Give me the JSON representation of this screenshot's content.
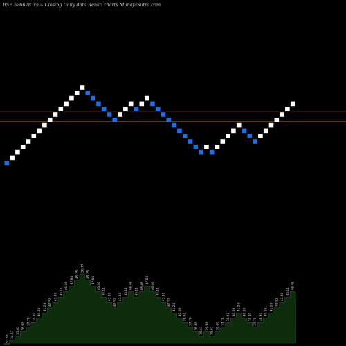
{
  "chart_title": "BSE 526628  3%~   Closing Daily data  Renko  charts MunafaSutra.com",
  "colors": {
    "background": "#000000",
    "up_brick": "#ffffff",
    "down_brick": "#1e6fe6",
    "reference_line": "#b5731c",
    "volume_fill": "#0c2c0c",
    "volume_stroke": "#3a5a3a"
  },
  "chart_data": [
    {
      "type": "renko",
      "title": "BSE 526628  3%~   Closing Daily data  Renko  charts MunafaSutra.com",
      "brick_size": "3%",
      "reference_lines": [
        44.6,
        42.1
      ],
      "bricks": [
        {
          "close": 33.56,
          "dir": "down"
        },
        {
          "close": 34.57,
          "dir": "up"
        },
        {
          "close": 35.61,
          "dir": "up"
        },
        {
          "close": 36.68,
          "dir": "up"
        },
        {
          "close": 37.78,
          "dir": "up"
        },
        {
          "close": 38.91,
          "dir": "up"
        },
        {
          "close": 40.08,
          "dir": "up"
        },
        {
          "close": 41.28,
          "dir": "up"
        },
        {
          "close": 42.52,
          "dir": "up"
        },
        {
          "close": 43.8,
          "dir": "up"
        },
        {
          "close": 45.11,
          "dir": "up"
        },
        {
          "close": 46.46,
          "dir": "up"
        },
        {
          "close": 47.86,
          "dir": "up"
        },
        {
          "close": 49.29,
          "dir": "up"
        },
        {
          "close": 50.77,
          "dir": "up"
        },
        {
          "close": 49.29,
          "dir": "down"
        },
        {
          "close": 47.86,
          "dir": "down"
        },
        {
          "close": 46.46,
          "dir": "down"
        },
        {
          "close": 45.11,
          "dir": "down"
        },
        {
          "close": 43.8,
          "dir": "down"
        },
        {
          "close": 42.52,
          "dir": "down"
        },
        {
          "close": 43.8,
          "dir": "up"
        },
        {
          "close": 45.11,
          "dir": "up"
        },
        {
          "close": 46.46,
          "dir": "up"
        },
        {
          "close": 45.11,
          "dir": "down"
        },
        {
          "close": 46.46,
          "dir": "up"
        },
        {
          "close": 47.86,
          "dir": "up"
        },
        {
          "close": 46.46,
          "dir": "down"
        },
        {
          "close": 45.11,
          "dir": "down"
        },
        {
          "close": 43.8,
          "dir": "down"
        },
        {
          "close": 42.52,
          "dir": "down"
        },
        {
          "close": 41.28,
          "dir": "down"
        },
        {
          "close": 40.08,
          "dir": "down"
        },
        {
          "close": 38.91,
          "dir": "down"
        },
        {
          "close": 37.78,
          "dir": "down"
        },
        {
          "close": 36.68,
          "dir": "down"
        },
        {
          "close": 35.61,
          "dir": "down"
        },
        {
          "close": 36.68,
          "dir": "up"
        },
        {
          "close": 35.61,
          "dir": "down"
        },
        {
          "close": 36.68,
          "dir": "up"
        },
        {
          "close": 37.78,
          "dir": "up"
        },
        {
          "close": 38.91,
          "dir": "up"
        },
        {
          "close": 40.08,
          "dir": "up"
        },
        {
          "close": 41.28,
          "dir": "up"
        },
        {
          "close": 40.08,
          "dir": "down"
        },
        {
          "close": 38.91,
          "dir": "down"
        },
        {
          "close": 37.78,
          "dir": "down"
        },
        {
          "close": 38.91,
          "dir": "up"
        },
        {
          "close": 40.08,
          "dir": "up"
        },
        {
          "close": 41.28,
          "dir": "up"
        },
        {
          "close": 42.52,
          "dir": "up"
        },
        {
          "close": 43.8,
          "dir": "up"
        },
        {
          "close": 45.11,
          "dir": "up"
        },
        {
          "close": 46.46,
          "dir": "up"
        }
      ],
      "volume_labels": [
        "33.56",
        "34.57",
        "35.61",
        "36.68",
        "37.78",
        "38.91",
        "40.08",
        "41.28",
        "42.52",
        "43.80",
        "45.11",
        "46.46",
        "47.86",
        "49.29",
        "50.77",
        "49.29",
        "47.86",
        "46.46",
        "45.11",
        "43.80",
        "42.52",
        "43.80",
        "45.11",
        "46.46",
        "45.11",
        "46.46",
        "47.86",
        "46.46",
        "45.11",
        "43.80",
        "42.52",
        "41.28",
        "40.08",
        "38.91",
        "37.78",
        "36.68",
        "35.61",
        "36.68",
        "35.61",
        "36.68",
        "37.78",
        "38.91",
        "40.08",
        "41.28",
        "40.08",
        "38.91",
        "37.78",
        "38.91",
        "40.08",
        "41.28",
        "42.52",
        "43.80",
        "45.11",
        "46.46"
      ]
    }
  ]
}
